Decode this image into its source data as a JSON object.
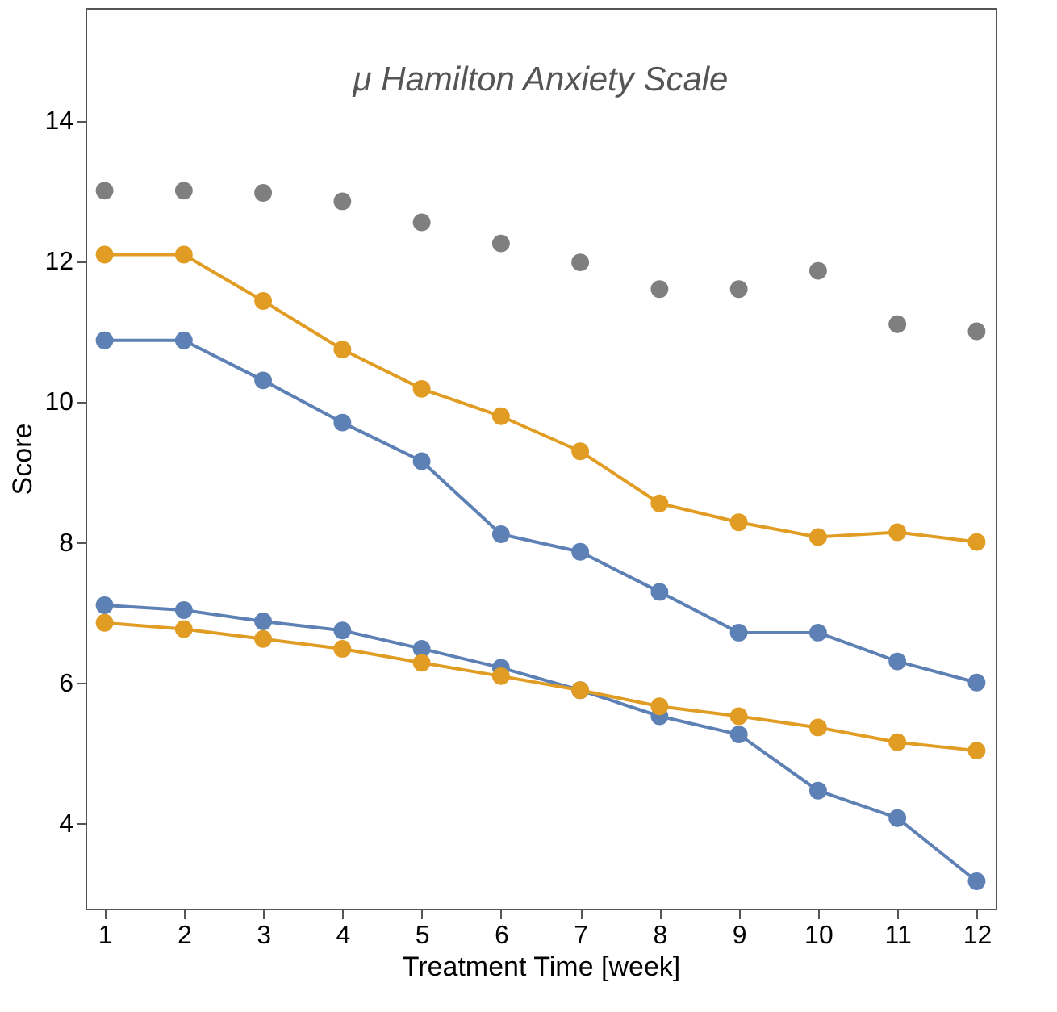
{
  "chart_data": {
    "type": "line",
    "title": "μ Hamilton Anxiety Scale",
    "xlabel": "Treatment Time [week]",
    "ylabel": "Score",
    "x": [
      1,
      2,
      3,
      4,
      5,
      6,
      7,
      8,
      9,
      10,
      11,
      12
    ],
    "xlim": [
      0.76,
      12.24
    ],
    "xticks": [
      1,
      2,
      3,
      4,
      5,
      6,
      7,
      8,
      9,
      10,
      11,
      12
    ],
    "ylim": [
      2.78,
      15.6
    ],
    "yticks": [
      4,
      6,
      8,
      10,
      12,
      14
    ],
    "grid": false,
    "marker": "circle",
    "series": [
      {
        "type": "scatter",
        "color": "#7f7f7f",
        "values": [
          13.0,
          13.0,
          12.97,
          12.85,
          12.55,
          12.25,
          11.98,
          11.6,
          11.6,
          11.86,
          11.1,
          11.0
        ]
      },
      {
        "color": "#e19c24",
        "values": [
          12.09,
          12.09,
          11.43,
          10.74,
          10.18,
          9.79,
          9.29,
          8.55,
          8.28,
          8.07,
          8.14,
          8.0
        ]
      },
      {
        "color": "#5e81b5",
        "values": [
          10.87,
          10.87,
          10.3,
          9.7,
          9.15,
          8.11,
          7.86,
          7.29,
          6.71,
          6.71,
          6.3,
          6.0
        ]
      },
      {
        "color": "#5e81b5",
        "values": [
          7.1,
          7.03,
          6.87,
          6.74,
          6.48,
          6.21,
          5.89,
          5.52,
          5.26,
          4.46,
          4.07,
          3.17
        ]
      },
      {
        "color": "#e19c24",
        "values": [
          6.85,
          6.76,
          6.62,
          6.48,
          6.28,
          6.09,
          5.89,
          5.66,
          5.52,
          5.36,
          5.15,
          5.03
        ]
      }
    ]
  }
}
